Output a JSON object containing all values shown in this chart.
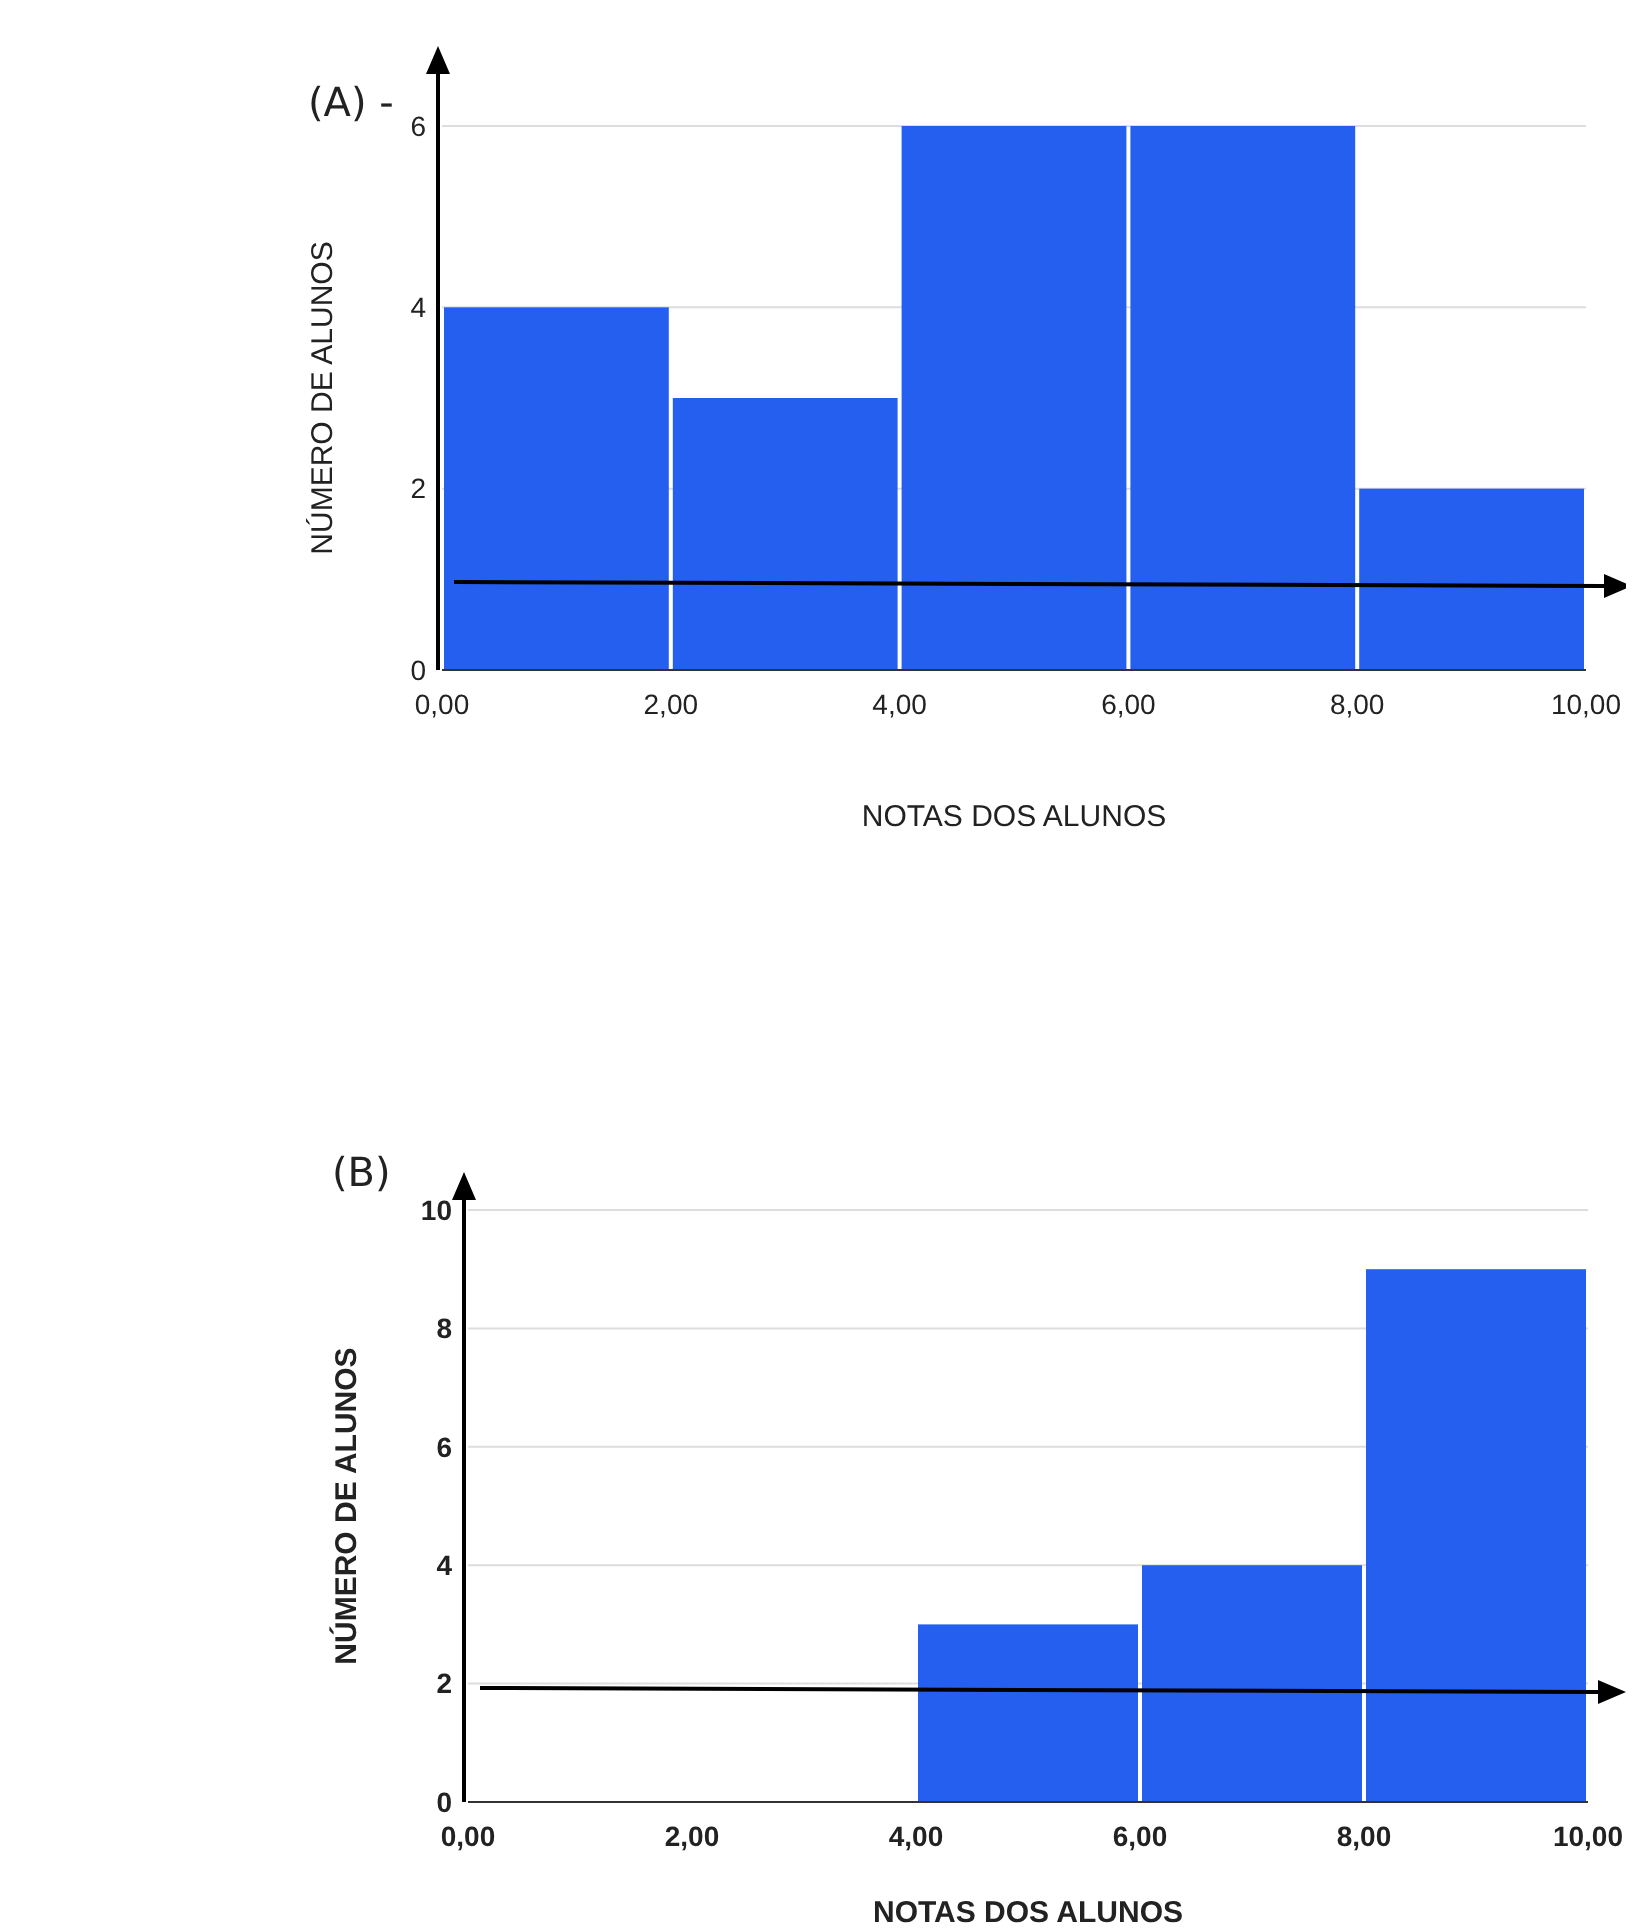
{
  "chart_data": [
    {
      "type": "histogram",
      "title": "(A) -",
      "xlabel": "NOTAS DOS ALUNOS",
      "ylabel": "NÚMERO DE ALUNOS",
      "bins": [
        0,
        2,
        4,
        6,
        8,
        10
      ],
      "values": [
        4,
        3,
        6,
        6,
        2
      ],
      "color": "#245ff0",
      "xlim": [
        0,
        10
      ],
      "xticks": [
        {
          "value": 0,
          "label": "0,00"
        },
        {
          "value": 2,
          "label": "2,00"
        },
        {
          "value": 4,
          "label": "4,00"
        },
        {
          "value": 6,
          "label": "6,00"
        },
        {
          "value": 8,
          "label": "8,00"
        },
        {
          "value": 10,
          "label": "10,00"
        }
      ],
      "ylim": [
        0,
        6
      ],
      "yticks": [
        0,
        2,
        4,
        6
      ],
      "grid": "y"
    },
    {
      "type": "histogram",
      "title": "(B)",
      "xlabel": "NOTAS DOS ALUNOS",
      "ylabel": "NÚMERO DE ALUNOS",
      "bins": [
        0,
        2,
        4,
        6,
        8,
        10
      ],
      "values": [
        0,
        0,
        3,
        4,
        9
      ],
      "color": "#245ff0",
      "xlim": [
        0,
        10
      ],
      "xticks": [
        {
          "value": 0,
          "label": "0,00"
        },
        {
          "value": 2,
          "label": "2,00"
        },
        {
          "value": 4,
          "label": "4,00"
        },
        {
          "value": 6,
          "label": "6,00"
        },
        {
          "value": 8,
          "label": "8,00"
        },
        {
          "value": 10,
          "label": "10,00"
        }
      ],
      "ylim": [
        0,
        10
      ],
      "yticks": [
        0,
        2,
        4,
        6,
        8,
        10
      ],
      "grid": "y"
    }
  ]
}
